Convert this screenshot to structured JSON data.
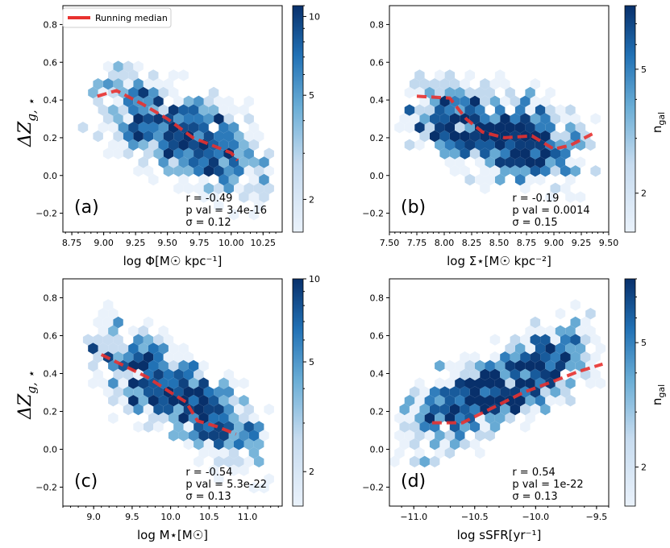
{
  "figure": {
    "ylabel_main": "ΔZ",
    "ylabel_sub": "g, ⋆",
    "colorbar_label_main": "n",
    "colorbar_label_sub": "gal",
    "legend_label": "Running median",
    "median_color": "#e8312f",
    "cmap_low": "#eaf2fb",
    "cmap_high": "#08306b"
  },
  "chart_data": [
    {
      "id": "a",
      "type": "hexbin",
      "panel_label": "(a)",
      "xlabel": "log Φ[M☉ kpc⁻¹]",
      "xlim": [
        8.68,
        10.4
      ],
      "ylim": [
        -0.3,
        0.9
      ],
      "xticks": [
        8.75,
        9.0,
        9.25,
        9.5,
        9.75,
        10.0,
        10.25
      ],
      "xtick_labels": [
        "8.75",
        "9.00",
        "9.25",
        "9.50",
        "9.75",
        "10.00",
        "10.25"
      ],
      "yticks": [
        -0.2,
        0.0,
        0.2,
        0.4,
        0.6,
        0.8
      ],
      "ytick_labels": [
        "−0.2",
        "0.0",
        "0.2",
        "0.4",
        "0.6",
        "0.8"
      ],
      "stats": [
        "r = -0.49",
        "p val = 3.4e-16",
        "σ = 0.12"
      ],
      "running_median": {
        "x": [
          8.95,
          9.1,
          9.3,
          9.5,
          9.7,
          9.85,
          10.0,
          10.05
        ],
        "y": [
          0.42,
          0.45,
          0.38,
          0.3,
          0.2,
          0.16,
          0.12,
          0.08
        ]
      },
      "colorbar": {
        "vmin": 1.5,
        "vmax": 11,
        "ticks": [
          2,
          5,
          10
        ],
        "tick_labels": [
          "2",
          "5",
          "10"
        ]
      },
      "trend": {
        "x0": 8.85,
        "x1": 10.35,
        "m": -0.29,
        "b": 3.0,
        "spread": 0.17,
        "n": 650,
        "seed": 11
      }
    },
    {
      "id": "b",
      "type": "hexbin",
      "panel_label": "(b)",
      "xlabel": "log Σ⋆[M☉ kpc⁻²]",
      "xlim": [
        7.5,
        9.5
      ],
      "ylim": [
        -0.3,
        0.9
      ],
      "xticks": [
        7.5,
        7.75,
        8.0,
        8.25,
        8.5,
        8.75,
        9.0,
        9.25,
        9.5
      ],
      "xtick_labels": [
        "7.50",
        "7.75",
        "8.00",
        "8.25",
        "8.50",
        "8.75",
        "9.00",
        "9.25",
        "9.50"
      ],
      "yticks": [
        -0.2,
        0.0,
        0.2,
        0.4,
        0.6,
        0.8
      ],
      "ytick_labels": [
        "−0.2",
        "0.0",
        "0.2",
        "0.4",
        "0.6",
        "0.8"
      ],
      "stats": [
        "r = -0.19",
        "p val = 0.0014",
        "σ = 0.15"
      ],
      "running_median": {
        "x": [
          7.75,
          8.05,
          8.2,
          8.35,
          8.55,
          8.8,
          9.0,
          9.15,
          9.35
        ],
        "y": [
          0.42,
          0.41,
          0.3,
          0.23,
          0.2,
          0.21,
          0.14,
          0.16,
          0.22
        ]
      },
      "colorbar": {
        "vmin": 1.5,
        "vmax": 8,
        "ticks": [
          2,
          5
        ],
        "tick_labels": [
          "2",
          "5"
        ]
      },
      "trend": {
        "x0": 7.6,
        "x1": 9.4,
        "m": -0.15,
        "b": 1.5,
        "spread": 0.16,
        "n": 650,
        "seed": 23
      }
    },
    {
      "id": "c",
      "type": "hexbin",
      "panel_label": "(c)",
      "xlabel": "log M⋆[M☉]",
      "xlim": [
        8.6,
        11.45
      ],
      "ylim": [
        -0.3,
        0.9
      ],
      "xticks": [
        9.0,
        9.5,
        10.0,
        10.5,
        11.0
      ],
      "xtick_labels": [
        "9.0",
        "9.5",
        "10.0",
        "10.5",
        "11.0"
      ],
      "yticks": [
        -0.2,
        0.0,
        0.2,
        0.4,
        0.6,
        0.8
      ],
      "ytick_labels": [
        "−0.2",
        "0.0",
        "0.2",
        "0.4",
        "0.6",
        "0.8"
      ],
      "stats": [
        "r = -0.54",
        "p val = 5.3e-22",
        "σ = 0.13"
      ],
      "running_median": {
        "x": [
          9.1,
          9.4,
          9.7,
          10.0,
          10.2,
          10.35,
          10.6,
          10.85
        ],
        "y": [
          0.5,
          0.44,
          0.38,
          0.3,
          0.25,
          0.15,
          0.12,
          0.08
        ]
      },
      "colorbar": {
        "vmin": 1.5,
        "vmax": 10,
        "ticks": [
          2,
          5,
          10
        ],
        "tick_labels": [
          "2",
          "5",
          "10"
        ]
      },
      "trend": {
        "x0": 8.8,
        "x1": 11.35,
        "m": -0.24,
        "b": 2.72,
        "spread": 0.16,
        "n": 650,
        "seed": 37
      }
    },
    {
      "id": "d",
      "type": "hexbin",
      "panel_label": "(d)",
      "xlabel": "log sSFR[yr⁻¹]",
      "xlim": [
        -11.2,
        -9.4
      ],
      "ylim": [
        -0.3,
        0.9
      ],
      "xticks": [
        -11.0,
        -10.5,
        -10.0,
        -9.5
      ],
      "xtick_labels": [
        "−11.0",
        "−10.5",
        "−10.0",
        "−9.5"
      ],
      "yticks": [
        -0.2,
        0.0,
        0.2,
        0.4,
        0.6,
        0.8
      ],
      "ytick_labels": [
        "−0.2",
        "0.0",
        "0.2",
        "0.4",
        "0.6",
        "0.8"
      ],
      "stats": [
        "r = 0.54",
        "p val = 1e-22",
        "σ = 0.13"
      ],
      "running_median": {
        "x": [
          -10.85,
          -10.6,
          -10.35,
          -10.1,
          -9.85,
          -9.65,
          -9.45
        ],
        "y": [
          0.14,
          0.14,
          0.22,
          0.3,
          0.36,
          0.41,
          0.45
        ]
      },
      "colorbar": {
        "vmin": 1.5,
        "vmax": 8,
        "ticks": [
          2,
          5
        ],
        "tick_labels": [
          "2",
          "5"
        ]
      },
      "trend": {
        "x0": -11.2,
        "x1": -9.4,
        "m": 0.28,
        "b": 3.2,
        "spread": 0.15,
        "n": 650,
        "seed": 51
      }
    }
  ]
}
